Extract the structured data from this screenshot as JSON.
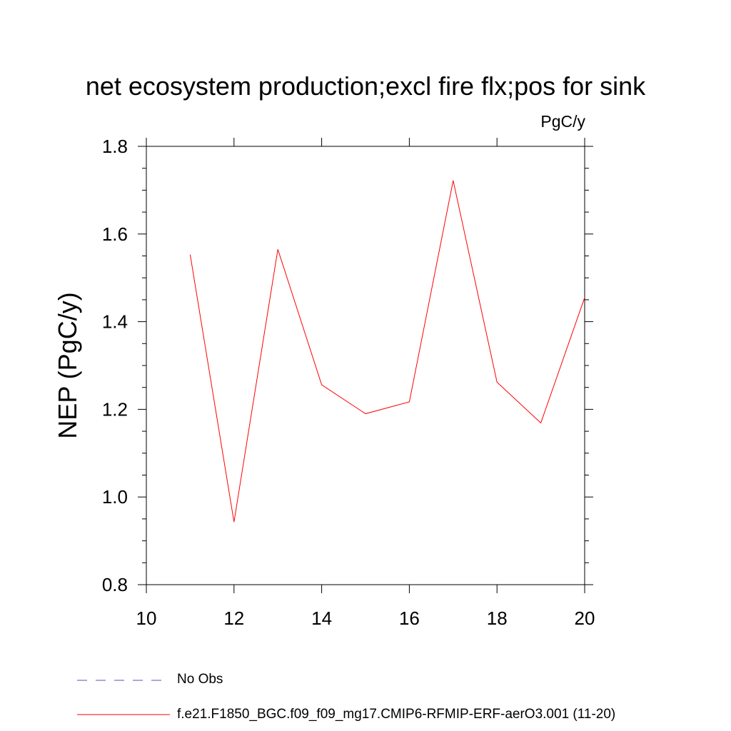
{
  "chart_data": {
    "type": "line",
    "title": "net ecosystem production;excl fire flx;pos for sink",
    "units": "PgC/y",
    "ylabel": "NEP  (PgC/y)",
    "xlabel": "",
    "xlim": [
      10,
      20
    ],
    "ylim": [
      0.8,
      1.8
    ],
    "x_ticks": [
      10,
      12,
      14,
      16,
      18,
      20
    ],
    "y_ticks": [
      0.8,
      1.0,
      1.2,
      1.4,
      1.6,
      1.8
    ],
    "x_tick_labels": [
      "10",
      "12",
      "14",
      "16",
      "18",
      "20"
    ],
    "y_tick_labels": [
      "0.8",
      "1.0",
      "1.2",
      "1.4",
      "1.6",
      "1.8"
    ],
    "grid": false,
    "legend_position": "bottom",
    "series": [
      {
        "name": "f.e21.F1850_BGC.f09_f09_mg17.CMIP6-RFMIP-ERF-aerO3.001 (11-20)",
        "color": "#ff0000",
        "style": "solid",
        "x": [
          11,
          12,
          13,
          14,
          15,
          16,
          17,
          18,
          19,
          20
        ],
        "y": [
          1.553,
          0.943,
          1.565,
          1.256,
          1.19,
          1.217,
          1.722,
          1.262,
          1.169,
          1.455
        ]
      }
    ],
    "legend": [
      {
        "label": "No Obs",
        "color": "#5a4fb0",
        "style": "dashed"
      },
      {
        "label": "f.e21.F1850_BGC.f09_f09_mg17.CMIP6-RFMIP-ERF-aerO3.001 (11-20)",
        "color": "#ff0000",
        "style": "solid"
      }
    ]
  }
}
